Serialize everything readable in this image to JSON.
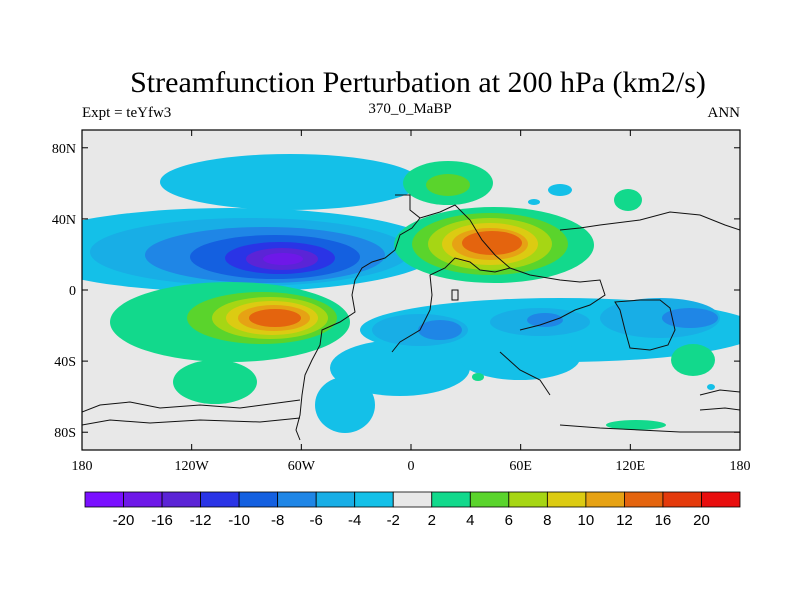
{
  "chart_data": {
    "type": "filled-contour-map",
    "title": "Streamfunction Perturbation at 200 hPa (km2/s)",
    "left_subtitle": "Expt = teYfw3",
    "center_subtitle": "370_0_MaBP",
    "right_subtitle": "ANN",
    "xlim": [
      -180,
      180
    ],
    "ylim": [
      -90,
      90
    ],
    "x_ticks": [
      {
        "value": -180,
        "label": "180"
      },
      {
        "value": -120,
        "label": "120W"
      },
      {
        "value": -60,
        "label": "60W"
      },
      {
        "value": 0,
        "label": "0"
      },
      {
        "value": 60,
        "label": "60E"
      },
      {
        "value": 120,
        "label": "120E"
      },
      {
        "value": 180,
        "label": "180"
      }
    ],
    "y_ticks": [
      {
        "value": 80,
        "label": "80N"
      },
      {
        "value": 40,
        "label": "40N"
      },
      {
        "value": 0,
        "label": "0"
      },
      {
        "value": -40,
        "label": "40S"
      },
      {
        "value": -80,
        "label": "80S"
      }
    ],
    "contour_levels": [
      "-20",
      "-16",
      "-12",
      "-10",
      "-8",
      "-6",
      "-4",
      "-2",
      "2",
      "4",
      "6",
      "8",
      "10",
      "12",
      "16",
      "20"
    ],
    "colorbar_colors": [
      "#7a10ff",
      "#6e18e8",
      "#5b24d6",
      "#2a34e6",
      "#1460e0",
      "#1f86e6",
      "#18aee6",
      "#14c0e8",
      "#e8e8e8",
      "#12d98c",
      "#5ad42c",
      "#a6d614",
      "#dccb12",
      "#e6a214",
      "#e4640e",
      "#e43a0c",
      "#e80e0e"
    ],
    "features": [
      {
        "name": "low-center",
        "lon": -70,
        "lat": 15,
        "value": -20
      },
      {
        "name": "high-center-south",
        "lon": -68,
        "lat": -17,
        "value": 16
      },
      {
        "name": "high-center-north",
        "lon": 45,
        "lat": 22,
        "value": 16
      },
      {
        "name": "low-center-east",
        "lon": 140,
        "lat": -18,
        "value": -6
      }
    ]
  }
}
